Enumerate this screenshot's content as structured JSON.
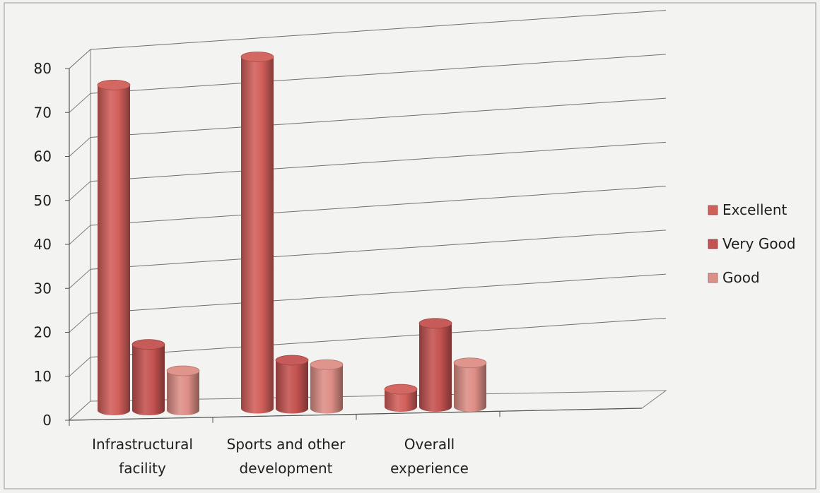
{
  "chart_data": {
    "type": "bar",
    "style": "3d-cylinder",
    "categories": [
      [
        "Infrastructural",
        "facility"
      ],
      [
        "Sports and other",
        "development"
      ],
      [
        "Overall",
        "experience"
      ]
    ],
    "series": [
      {
        "name": "Excellent",
        "values": [
          74,
          80,
          4
        ],
        "color": "#d15f5a"
      },
      {
        "name": "Very Good",
        "values": [
          15,
          11,
          19
        ],
        "color": "#c45250"
      },
      {
        "name": "Good",
        "values": [
          9,
          10,
          10
        ],
        "color": "#dd8e86"
      }
    ],
    "ylim": [
      0,
      80
    ],
    "yticks": [
      "0",
      "10",
      "20",
      "30",
      "40",
      "50",
      "60",
      "70",
      "80"
    ],
    "grid": true,
    "legend": "right"
  }
}
